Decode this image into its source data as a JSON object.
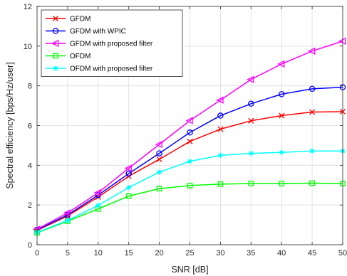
{
  "chart_data": {
    "type": "line",
    "title": "",
    "xlabel": "SNR [dB]",
    "ylabel": "Spectral efficiency [bps/Hz/user]",
    "xlim": [
      0,
      50
    ],
    "ylim": [
      0,
      12
    ],
    "xticks": [
      "0",
      "5",
      "10",
      "15",
      "20",
      "25",
      "30",
      "35",
      "40",
      "45",
      "50"
    ],
    "yticks": [
      "0",
      "2",
      "4",
      "6",
      "8",
      "10",
      "12"
    ],
    "grid": true,
    "legend_position": "top-left",
    "x": [
      0,
      5,
      10,
      15,
      20,
      25,
      30,
      35,
      40,
      45,
      50
    ],
    "series": [
      {
        "name": "GFDM",
        "color": "#ff0000",
        "marker": "x",
        "values": [
          0.72,
          1.45,
          2.4,
          3.45,
          4.3,
          5.2,
          5.82,
          6.24,
          6.5,
          6.68,
          6.7
        ]
      },
      {
        "name": "GFDM with WPIC",
        "color": "#0000ff",
        "marker": "circle",
        "values": [
          0.75,
          1.5,
          2.5,
          3.58,
          4.6,
          5.65,
          6.5,
          7.1,
          7.58,
          7.85,
          7.93
        ]
      },
      {
        "name": "GFDM with proposed filter",
        "color": "#ff00ff",
        "marker": "triangle-left",
        "values": [
          0.78,
          1.6,
          2.62,
          3.85,
          5.05,
          6.25,
          7.28,
          8.32,
          9.1,
          9.75,
          10.25
        ]
      },
      {
        "name": "OFDM",
        "color": "#00ff00",
        "marker": "square",
        "values": [
          0.6,
          1.18,
          1.8,
          2.45,
          2.82,
          2.98,
          3.05,
          3.08,
          3.08,
          3.1,
          3.08
        ]
      },
      {
        "name": "OFDM with proposed filter",
        "color": "#00ffff",
        "marker": "asterisk",
        "values": [
          0.62,
          1.22,
          1.98,
          2.88,
          3.65,
          4.2,
          4.5,
          4.6,
          4.65,
          4.72,
          4.72
        ]
      }
    ]
  }
}
